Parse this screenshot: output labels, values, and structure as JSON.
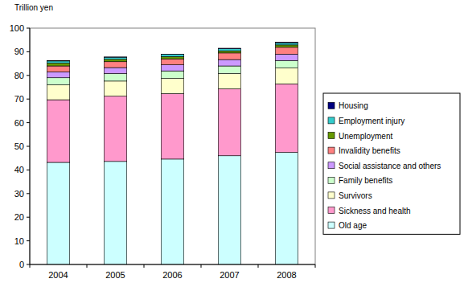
{
  "chart_data": {
    "type": "bar",
    "stacked": true,
    "legend": "right",
    "grid": false,
    "y_label": "Trillion yen",
    "categories": [
      "2004",
      "2005",
      "2006",
      "2007",
      "2008"
    ],
    "ylim": [
      0,
      100
    ],
    "yticks": [
      0,
      10,
      20,
      30,
      40,
      50,
      60,
      70,
      80,
      90,
      100
    ],
    "series": [
      {
        "name": "Old age",
        "color": "#ccffff",
        "values": [
          43.2,
          43.6,
          44.6,
          46.0,
          47.4
        ]
      },
      {
        "name": "Sickness and health",
        "color": "#ff99cc",
        "values": [
          26.5,
          27.6,
          27.7,
          28.3,
          29.0
        ]
      },
      {
        "name": "Survivors",
        "color": "#ffffcc",
        "values": [
          6.3,
          6.4,
          6.4,
          6.5,
          6.7
        ]
      },
      {
        "name": "Family benefits",
        "color": "#ccffcc",
        "values": [
          3.0,
          3.2,
          3.2,
          3.2,
          3.2
        ]
      },
      {
        "name": "Social assistance and others",
        "color": "#cc99ff",
        "values": [
          2.5,
          2.5,
          2.6,
          2.7,
          2.7
        ]
      },
      {
        "name": "Invalidity benefits",
        "color": "#ff8080",
        "values": [
          2.5,
          2.5,
          2.5,
          2.8,
          2.9
        ]
      },
      {
        "name": "Unemployment",
        "color": "#669900",
        "values": [
          1.2,
          1.0,
          1.0,
          0.9,
          1.0
        ]
      },
      {
        "name": "Employment injury",
        "color": "#33cccc",
        "values": [
          0.9,
          0.9,
          0.9,
          0.9,
          0.9
        ]
      },
      {
        "name": "Housing",
        "color": "#000080",
        "values": [
          0.1,
          0.1,
          0.1,
          0.2,
          0.2
        ]
      }
    ]
  }
}
